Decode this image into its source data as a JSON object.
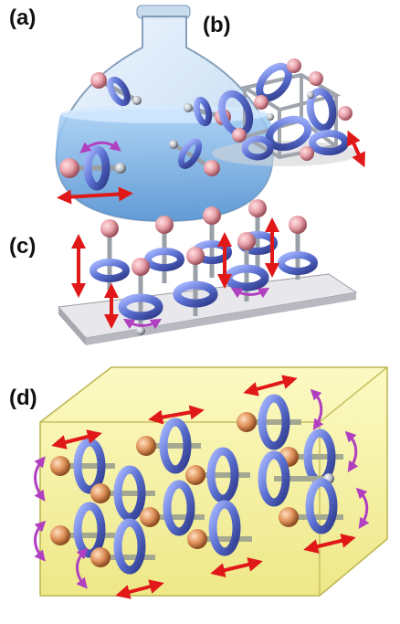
{
  "figure": {
    "panels": [
      {
        "label": "(a)"
      },
      {
        "label": "(b)"
      },
      {
        "label": "(c)"
      },
      {
        "label": "(d)"
      }
    ],
    "colors": {
      "ring": "#5a6fd0",
      "ring_dark": "#2e3a8a",
      "ball_pink": "#e8a0a8",
      "ball_orange": "#e0925a",
      "arrow_red": "#e01818",
      "arrow_purple": "#b040c0",
      "liquid": "#7fb6e8",
      "box_yellow": "#f4f08a",
      "substrate": "#d8d8dc"
    }
  }
}
